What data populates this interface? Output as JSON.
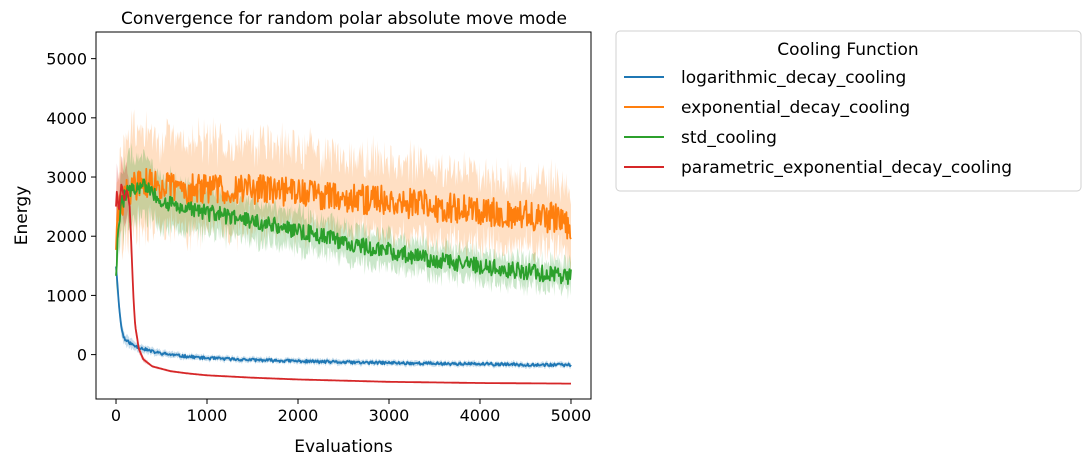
{
  "chart_data": {
    "type": "line",
    "title": "Convergence for random polar absolute move mode",
    "xlabel": "Evaluations",
    "ylabel": "Energy",
    "xlim": [
      -220,
      5220
    ],
    "ylim": [
      -750,
      5450
    ],
    "xticks": [
      0,
      1000,
      2000,
      3000,
      4000,
      5000
    ],
    "yticks": [
      0,
      1000,
      2000,
      3000,
      4000,
      5000
    ],
    "grid": false,
    "legend": {
      "title": "Cooling Function",
      "placement": "outside-upper-right"
    },
    "series": [
      {
        "name": "logarithmic_decay_cooling",
        "color": "#1f77b4",
        "x": [
          0,
          20,
          40,
          60,
          80,
          100,
          150,
          200,
          300,
          400,
          500,
          700,
          1000,
          1500,
          2000,
          2500,
          3000,
          3500,
          4000,
          4500,
          5000
        ],
        "y": [
          1500,
          1100,
          700,
          450,
          320,
          250,
          200,
          150,
          100,
          50,
          20,
          -20,
          -60,
          -90,
          -110,
          -130,
          -140,
          -150,
          -160,
          -170,
          -175
        ],
        "band": [
          80,
          150,
          150,
          120,
          100,
          90,
          80,
          70,
          60,
          55,
          50,
          45,
          40,
          40,
          40,
          40,
          40,
          40,
          40,
          40,
          40
        ],
        "noise": 25
      },
      {
        "name": "exponential_decay_cooling",
        "color": "#ff7f0e",
        "x": [
          0,
          20,
          50,
          100,
          200,
          300,
          500,
          800,
          1000,
          1500,
          2000,
          2500,
          3000,
          3500,
          4000,
          4500,
          4900,
          5000
        ],
        "y": [
          1900,
          2300,
          2500,
          2700,
          2850,
          2900,
          2850,
          2800,
          2800,
          2800,
          2750,
          2650,
          2600,
          2500,
          2450,
          2350,
          2300,
          2100
        ],
        "band": [
          500,
          500,
          600,
          700,
          700,
          650,
          600,
          600,
          600,
          600,
          560,
          540,
          520,
          500,
          480,
          460,
          440,
          440
        ],
        "noise": 260
      },
      {
        "name": "std_cooling",
        "color": "#2ca02c",
        "x": [
          0,
          20,
          50,
          100,
          200,
          300,
          500,
          800,
          1000,
          1500,
          2000,
          2500,
          3000,
          3500,
          4000,
          4500,
          5000
        ],
        "y": [
          1400,
          2000,
          2500,
          2700,
          2800,
          2850,
          2600,
          2450,
          2400,
          2250,
          2100,
          1900,
          1750,
          1600,
          1500,
          1400,
          1320
        ],
        "band": [
          300,
          350,
          450,
          500,
          500,
          450,
          400,
          350,
          330,
          300,
          280,
          260,
          240,
          230,
          220,
          210,
          200
        ],
        "noise": 140
      },
      {
        "name": "parametric_exponential_decay_cooling",
        "color": "#d62728",
        "x": [
          0,
          10,
          30,
          60,
          90,
          120,
          150,
          170,
          190,
          210,
          250,
          300,
          400,
          600,
          800,
          1000,
          1500,
          2000,
          3000,
          4000,
          5000
        ],
        "y": [
          2500,
          2800,
          2400,
          2900,
          2600,
          2800,
          2500,
          1800,
          1000,
          500,
          100,
          -80,
          -200,
          -280,
          -320,
          -350,
          -390,
          -420,
          -460,
          -480,
          -490
        ],
        "band": [
          250,
          400,
          400,
          400,
          400,
          350,
          300,
          200,
          150,
          100,
          60,
          40,
          20,
          15,
          10,
          10,
          10,
          10,
          10,
          10,
          10
        ],
        "noise": 0
      }
    ]
  }
}
